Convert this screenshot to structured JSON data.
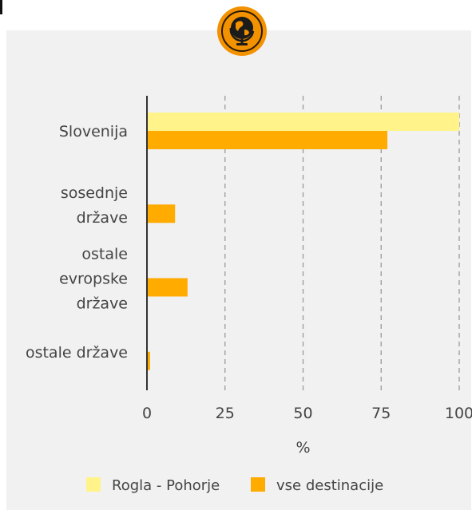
{
  "chart_data": {
    "type": "bar",
    "orientation": "horizontal",
    "categories": [
      [
        "Slovenija"
      ],
      [
        "sosednje",
        "države"
      ],
      [
        "ostale",
        "evropske",
        "države"
      ],
      [
        "ostale države"
      ]
    ],
    "series": [
      {
        "name": "Rogla - Pohorje",
        "color": "#fff38a",
        "values": [
          100,
          0,
          0,
          0
        ]
      },
      {
        "name": "vse destinacije",
        "color": "#ffab00",
        "values": [
          77,
          9,
          13,
          1
        ]
      }
    ],
    "xlim": [
      0,
      100
    ],
    "xticks": [
      0,
      25,
      50,
      75,
      100
    ],
    "xlabel": "%",
    "grid": "vertical dashed",
    "legend_position": "bottom"
  },
  "badge": {
    "icon": "globe-icon",
    "color": "#f39200"
  },
  "colors": {
    "panel": "#f1f1f1",
    "grid": "#999999",
    "axis": "#333333",
    "text": "#444444"
  }
}
